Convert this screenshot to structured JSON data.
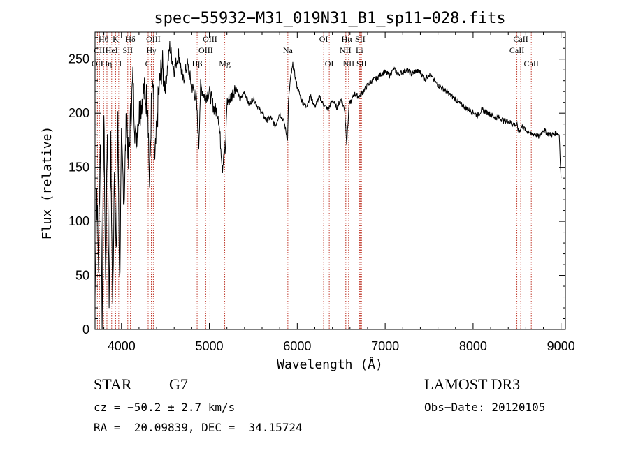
{
  "chart_data": {
    "type": "line",
    "title": "spec−55932−M31_019N31_B1_sp11−028.fits",
    "xlabel": "Wavelength (Å)",
    "ylabel": "Flux (relative)",
    "xlim": [
      3700,
      9050
    ],
    "ylim": [
      0,
      275
    ],
    "xticks": [
      4000,
      5000,
      6000,
      7000,
      8000,
      9000
    ],
    "yticks": [
      0,
      50,
      100,
      150,
      200,
      250
    ],
    "series": [
      {
        "name": "flux",
        "x": [
          3700,
          3720,
          3740,
          3760,
          3780,
          3800,
          3820,
          3840,
          3860,
          3880,
          3900,
          3920,
          3940,
          3960,
          3980,
          4000,
          4030,
          4060,
          4080,
          4100,
          4130,
          4160,
          4200,
          4250,
          4300,
          4320,
          4340,
          4360,
          4380,
          4420,
          4460,
          4500,
          4550,
          4600,
          4650,
          4700,
          4750,
          4800,
          4850,
          4880,
          4900,
          4950,
          5000,
          5050,
          5100,
          5150,
          5170,
          5180,
          5200,
          5250,
          5300,
          5350,
          5400,
          5450,
          5500,
          5550,
          5600,
          5650,
          5700,
          5750,
          5800,
          5850,
          5890,
          5900,
          5920,
          5950,
          6000,
          6050,
          6100,
          6150,
          6200,
          6250,
          6300,
          6350,
          6400,
          6450,
          6500,
          6540,
          6563,
          6590,
          6620,
          6650,
          6700,
          6750,
          6800,
          6850,
          6900,
          6950,
          7000,
          7050,
          7100,
          7150,
          7200,
          7250,
          7300,
          7350,
          7400,
          7450,
          7500,
          7550,
          7600,
          7650,
          7700,
          7750,
          7800,
          7850,
          7900,
          7950,
          8000,
          8050,
          8100,
          8150,
          8200,
          8250,
          8300,
          8350,
          8400,
          8450,
          8500,
          8520,
          8542,
          8560,
          8600,
          8640,
          8662,
          8700,
          8750,
          8800,
          8850,
          8900,
          8950,
          8980,
          9000
        ],
        "values": [
          30,
          130,
          60,
          180,
          10,
          200,
          40,
          190,
          25,
          170,
          15,
          160,
          60,
          190,
          40,
          170,
          120,
          205,
          150,
          190,
          230,
          175,
          200,
          220,
          210,
          130,
          205,
          225,
          150,
          215,
          245,
          225,
          262,
          240,
          255,
          230,
          245,
          225,
          215,
          170,
          225,
          215,
          220,
          205,
          200,
          150,
          170,
          158,
          210,
          215,
          225,
          212,
          220,
          208,
          214,
          206,
          200,
          193,
          196,
          188,
          200,
          192,
          175,
          210,
          230,
          245,
          224,
          212,
          206,
          216,
          206,
          215,
          208,
          203,
          212,
          205,
          213,
          203,
          172,
          208,
          212,
          218,
          215,
          220,
          226,
          230,
          232,
          236,
          238,
          235,
          241,
          236,
          238,
          240,
          236,
          239,
          238,
          231,
          236,
          231,
          226,
          223,
          220,
          216,
          213,
          209,
          206,
          203,
          201,
          198,
          203,
          201,
          199,
          196,
          196,
          193,
          193,
          190,
          189,
          182,
          186,
          188,
          184,
          183,
          180,
          181,
          178,
          185,
          181,
          180,
          182,
          180,
          140
        ]
      }
    ],
    "lines": [
      {
        "name": "Hθ",
        "x": 3797,
        "row": 0
      },
      {
        "name": "CII",
        "x": 3750,
        "row": 1
      },
      {
        "name": "OII",
        "x": 3727,
        "row": 2
      },
      {
        "name": "Hη",
        "x": 3835,
        "row": 2
      },
      {
        "name": "HeI",
        "x": 3889,
        "row": 1
      },
      {
        "name": "K",
        "x": 3934,
        "row": 0
      },
      {
        "name": "H",
        "x": 3969,
        "row": 2
      },
      {
        "name": "SII",
        "x": 4072,
        "row": 1
      },
      {
        "name": "Hδ",
        "x": 4102,
        "row": 0
      },
      {
        "name": "OIII",
        "x": 4363,
        "row": 0
      },
      {
        "name": "Hγ",
        "x": 4340,
        "row": 1
      },
      {
        "name": "G",
        "x": 4304,
        "row": 2
      },
      {
        "name": "OIII",
        "x": 5007,
        "row": 0
      },
      {
        "name": "OIII",
        "x": 4959,
        "row": 1
      },
      {
        "name": "Hβ",
        "x": 4861,
        "row": 2
      },
      {
        "name": "Mg",
        "x": 5175,
        "row": 2
      },
      {
        "name": "Na",
        "x": 5893,
        "row": 1
      },
      {
        "name": "OI",
        "x": 6300,
        "row": 0
      },
      {
        "name": "OI",
        "x": 6364,
        "row": 2
      },
      {
        "name": "Hα",
        "x": 6563,
        "row": 0
      },
      {
        "name": "NII",
        "x": 6548,
        "row": 1
      },
      {
        "name": "NII",
        "x": 6584,
        "row": 2
      },
      {
        "name": "Li",
        "x": 6708,
        "row": 1
      },
      {
        "name": "SII",
        "x": 6716,
        "row": 0
      },
      {
        "name": "SII",
        "x": 6731,
        "row": 2
      },
      {
        "name": "CaII",
        "x": 8542,
        "row": 0
      },
      {
        "name": "CaII",
        "x": 8498,
        "row": 1
      },
      {
        "name": "CaII",
        "x": 8662,
        "row": 2
      }
    ]
  },
  "info": {
    "object_class": "STAR",
    "subclass": "G7",
    "redshift": "cz = −50.2 ± 2.7 km/s",
    "coords": "RA =  20.09839, DEC =  34.15724",
    "survey": "LAMOST DR3",
    "obs_date": "Obs−Date: 20120105"
  },
  "colors": {
    "line_marker": "#c0392b",
    "spectrum": "#000000"
  }
}
